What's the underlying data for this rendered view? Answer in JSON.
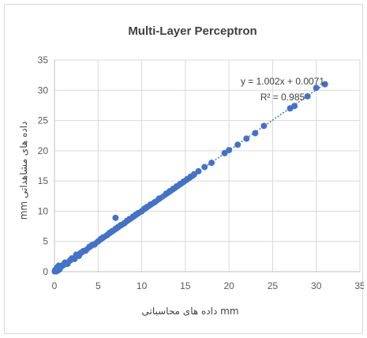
{
  "chart_data": {
    "type": "scatter",
    "title": "Multi-Layer Perceptron",
    "xlabel": "داده های محاسباتی mm",
    "ylabel": "mm داده های مشاهداتی",
    "xlim": [
      0,
      35
    ],
    "ylim": [
      0,
      35
    ],
    "x_ticks": [
      "0",
      "5",
      "10",
      "15",
      "20",
      "25",
      "30",
      "35"
    ],
    "y_ticks": [
      "0",
      "5",
      "10",
      "15",
      "20",
      "25",
      "30",
      "35"
    ],
    "grid": true,
    "legend": "none",
    "trendline": {
      "style": "dotted",
      "slope": 1.002,
      "intercept": 0.0071,
      "equation": "y = 1.002x + 0.0071",
      "r_squared": "R² = 0.985"
    },
    "points": [
      [
        0.05,
        0.1
      ],
      [
        0.1,
        0.3
      ],
      [
        0.2,
        0.05
      ],
      [
        0.3,
        0.7
      ],
      [
        0.4,
        0.2
      ],
      [
        0.5,
        1.0
      ],
      [
        0.6,
        0.4
      ],
      [
        0.8,
        0.9
      ],
      [
        1.0,
        1.1
      ],
      [
        1.2,
        1.5
      ],
      [
        1.5,
        1.3
      ],
      [
        1.8,
        1.9
      ],
      [
        2.0,
        2.2
      ],
      [
        2.3,
        2.1
      ],
      [
        2.5,
        2.8
      ],
      [
        2.8,
        2.6
      ],
      [
        3.0,
        3.1
      ],
      [
        3.3,
        3.4
      ],
      [
        3.6,
        3.5
      ],
      [
        4.0,
        4.1
      ],
      [
        4.3,
        4.4
      ],
      [
        4.6,
        4.5
      ],
      [
        5.0,
        5.0
      ],
      [
        5.3,
        5.4
      ],
      [
        5.6,
        5.7
      ],
      [
        6.0,
        6.0
      ],
      [
        6.3,
        6.4
      ],
      [
        6.6,
        6.7
      ],
      [
        7.0,
        7.1
      ],
      [
        7.0,
        8.9
      ],
      [
        7.3,
        7.4
      ],
      [
        7.6,
        7.7
      ],
      [
        8.0,
        8.0
      ],
      [
        8.3,
        8.4
      ],
      [
        8.6,
        8.7
      ],
      [
        9.0,
        9.1
      ],
      [
        9.3,
        9.4
      ],
      [
        9.6,
        9.7
      ],
      [
        10.0,
        10.0
      ],
      [
        10.3,
        10.4
      ],
      [
        10.6,
        10.7
      ],
      [
        11.0,
        11.1
      ],
      [
        11.5,
        11.5
      ],
      [
        12.0,
        12.1
      ],
      [
        12.8,
        12.9
      ],
      [
        13.2,
        13.3
      ],
      [
        13.6,
        13.7
      ],
      [
        14.0,
        14.1
      ],
      [
        14.4,
        14.5
      ],
      [
        14.8,
        14.9
      ],
      [
        15.2,
        15.3
      ],
      [
        15.6,
        15.7
      ],
      [
        16.0,
        16.1
      ],
      [
        16.5,
        16.6
      ],
      [
        17.2,
        17.3
      ],
      [
        18.0,
        18.0
      ],
      [
        19.5,
        19.6
      ],
      [
        20.0,
        20.1
      ],
      [
        21.0,
        21.0
      ],
      [
        22.0,
        22.0
      ],
      [
        23.0,
        22.9
      ],
      [
        24.0,
        24.1
      ],
      [
        27.0,
        27.0
      ],
      [
        27.5,
        27.4
      ],
      [
        29.0,
        29.0
      ],
      [
        30.0,
        30.4
      ],
      [
        31.0,
        31.0
      ]
    ],
    "dense_band": [
      0,
      16
    ],
    "colors": {
      "point": "#4472c4",
      "trendline": "#4472c4",
      "grid": "#d9d9d9",
      "axis": "#bfbfbf"
    }
  }
}
